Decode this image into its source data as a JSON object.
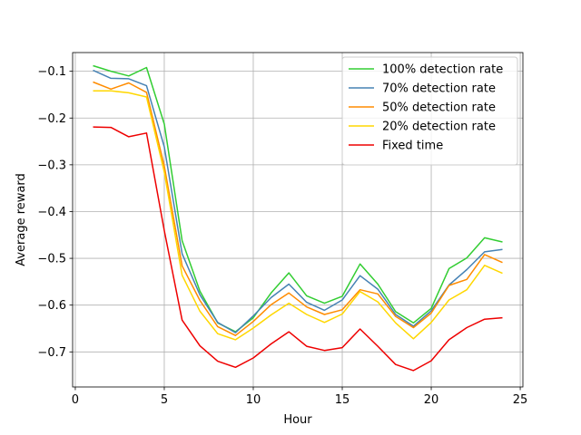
{
  "chart_data": {
    "type": "line",
    "title": "",
    "xlabel": "Hour",
    "ylabel": "Average reward",
    "xlim": [
      -0.15,
      25.15
    ],
    "ylim": [
      -0.775,
      -0.06
    ],
    "xticks": [
      0,
      5,
      10,
      15,
      20,
      25
    ],
    "xtick_labels": [
      "0",
      "5",
      "10",
      "15",
      "20",
      "25"
    ],
    "yticks": [
      -0.7,
      -0.6,
      -0.5,
      -0.4,
      -0.3,
      -0.2,
      -0.1
    ],
    "ytick_labels": [
      "−0.7",
      "−0.6",
      "−0.5",
      "−0.4",
      "−0.3",
      "−0.2",
      "−0.1"
    ],
    "grid": true,
    "legend_position": "top-right",
    "x": [
      1,
      2,
      3,
      4,
      5,
      6,
      7,
      8,
      9,
      10,
      11,
      12,
      13,
      14,
      15,
      16,
      17,
      18,
      19,
      20,
      21,
      22,
      23,
      24
    ],
    "series": [
      {
        "name": "100% detection rate",
        "color": "#32cd32",
        "values": [
          -0.088,
          -0.1,
          -0.11,
          -0.092,
          -0.213,
          -0.462,
          -0.57,
          -0.638,
          -0.657,
          -0.627,
          -0.574,
          -0.531,
          -0.58,
          -0.596,
          -0.581,
          -0.512,
          -0.555,
          -0.614,
          -0.638,
          -0.607,
          -0.522,
          -0.499,
          -0.456,
          -0.465
        ]
      },
      {
        "name": "70% detection rate",
        "color": "#4682b4",
        "values": [
          -0.098,
          -0.115,
          -0.116,
          -0.131,
          -0.262,
          -0.49,
          -0.578,
          -0.637,
          -0.659,
          -0.623,
          -0.584,
          -0.555,
          -0.594,
          -0.611,
          -0.589,
          -0.537,
          -0.566,
          -0.62,
          -0.645,
          -0.612,
          -0.557,
          -0.524,
          -0.486,
          -0.481
        ]
      },
      {
        "name": "50% detection rate",
        "color": "#ff8c00",
        "values": [
          -0.123,
          -0.138,
          -0.125,
          -0.145,
          -0.303,
          -0.516,
          -0.59,
          -0.646,
          -0.665,
          -0.635,
          -0.599,
          -0.574,
          -0.604,
          -0.62,
          -0.61,
          -0.567,
          -0.576,
          -0.624,
          -0.648,
          -0.617,
          -0.558,
          -0.545,
          -0.492,
          -0.509
        ]
      },
      {
        "name": "20% detection rate",
        "color": "#ffd700",
        "values": [
          -0.142,
          -0.142,
          -0.146,
          -0.155,
          -0.316,
          -0.536,
          -0.613,
          -0.661,
          -0.674,
          -0.649,
          -0.621,
          -0.596,
          -0.62,
          -0.637,
          -0.619,
          -0.571,
          -0.593,
          -0.638,
          -0.672,
          -0.637,
          -0.589,
          -0.567,
          -0.515,
          -0.532
        ]
      },
      {
        "name": "Fixed time",
        "color": "#ee0000",
        "values": [
          -0.219,
          -0.22,
          -0.24,
          -0.232,
          -0.441,
          -0.632,
          -0.687,
          -0.72,
          -0.733,
          -0.713,
          -0.683,
          -0.657,
          -0.688,
          -0.697,
          -0.691,
          -0.651,
          -0.688,
          -0.727,
          -0.74,
          -0.719,
          -0.674,
          -0.648,
          -0.63,
          -0.627
        ]
      }
    ]
  }
}
